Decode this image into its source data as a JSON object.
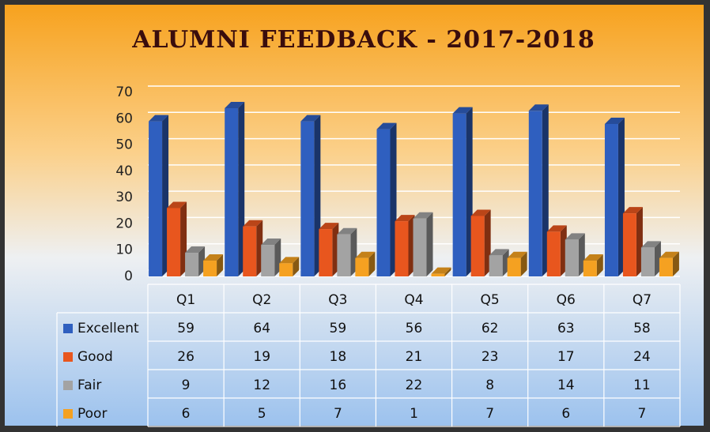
{
  "chart_data": {
    "type": "bar",
    "title": "ALUMNI FEEDBACK - 2017-2018",
    "categories": [
      "Q1",
      "Q2",
      "Q3",
      "Q4",
      "Q5",
      "Q6",
      "Q7"
    ],
    "series": [
      {
        "name": "Excellent",
        "color": "#2f5fbf",
        "values": [
          59,
          64,
          59,
          56,
          62,
          63,
          58
        ]
      },
      {
        "name": "Good",
        "color": "#e8561e",
        "values": [
          26,
          19,
          18,
          21,
          23,
          17,
          24
        ]
      },
      {
        "name": "Fair",
        "color": "#a3a3a3",
        "values": [
          9,
          12,
          16,
          22,
          8,
          14,
          11
        ]
      },
      {
        "name": "Poor",
        "color": "#f5a121",
        "values": [
          6,
          5,
          7,
          1,
          7,
          6,
          7
        ]
      }
    ],
    "ylim": [
      0,
      70
    ],
    "yticks": [
      0,
      10,
      20,
      30,
      40,
      50,
      60,
      70
    ],
    "grid": true
  }
}
